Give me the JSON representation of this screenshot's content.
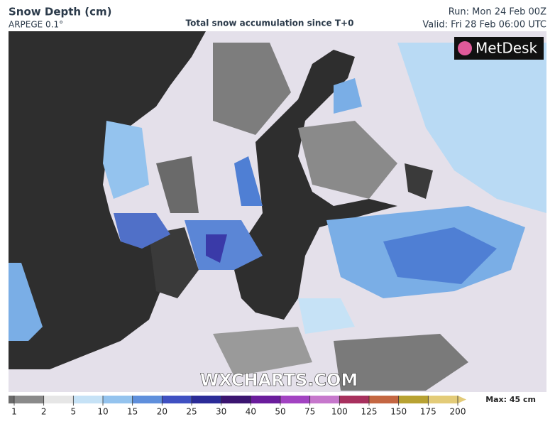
{
  "header": {
    "title": "Snow Depth (cm)",
    "model": "ARPEGE 0.1°",
    "subtitle": "Total snow accumulation since T+0",
    "run": "Run: Mon 24 Feb 00Z",
    "valid": "Valid: Fri 28 Feb 06:00 UTC"
  },
  "logo": "MetDesk",
  "watermark": "WXCHARTS.COM",
  "legend": {
    "ticks": [
      1,
      2,
      5,
      10,
      15,
      20,
      25,
      30,
      40,
      50,
      75,
      100,
      125,
      150,
      175,
      200
    ],
    "colors": [
      "#8a8a8a",
      "#e6e6e6",
      "#c6e2f6",
      "#94c3ee",
      "#5f8fdc",
      "#3f50c2",
      "#2b2b98",
      "#3b1470",
      "#6a1c9c",
      "#a243c2",
      "#c677cc",
      "#a8305e",
      "#c46642",
      "#b8a233",
      "#e3cb78"
    ],
    "max": "Max: 45 cm"
  }
}
